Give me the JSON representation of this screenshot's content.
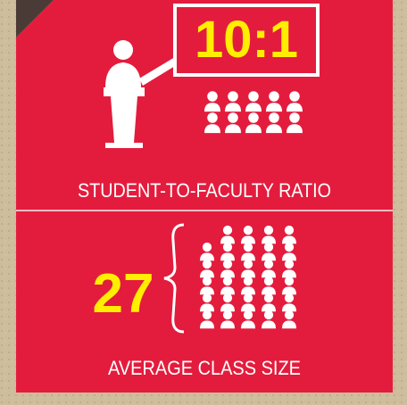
{
  "ratio": {
    "value_text": "10:1",
    "label": "STUDENT-TO-FACULTY RATIO"
  },
  "class_size": {
    "value_text": "27",
    "label": "AVERAGE CLASS SIZE"
  }
}
